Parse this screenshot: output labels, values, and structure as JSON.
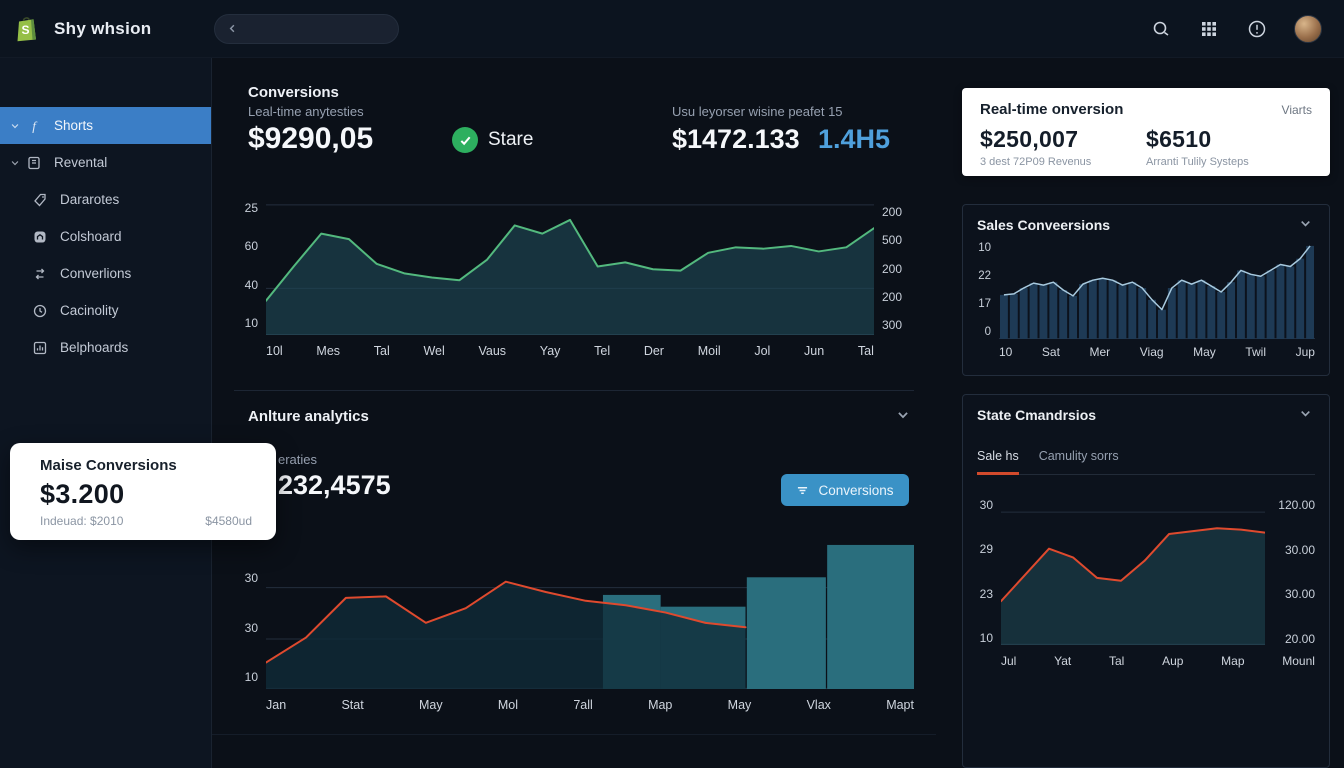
{
  "topbar": {
    "title": "Shy whsion",
    "icons": [
      "shopify-logo",
      "back-chevron-icon",
      "search-icon",
      "apps-grid-icon",
      "alert-icon",
      "avatar"
    ]
  },
  "sidebar": {
    "items": [
      {
        "label": "Shorts",
        "icon": "f-icon",
        "active": true,
        "chevron": true
      },
      {
        "label": "Revental",
        "icon": "book-icon",
        "active": false,
        "chevron": true
      },
      {
        "label": "Dararotes",
        "icon": "tag-icon",
        "active": false,
        "chevron": false
      },
      {
        "label": "Colshoard",
        "icon": "home-icon",
        "active": false,
        "chevron": false
      },
      {
        "label": "Converlions",
        "icon": "swap-icon",
        "active": false,
        "chevron": false
      },
      {
        "label": "Cacinolity",
        "icon": "clock-icon",
        "active": false,
        "chevron": false
      },
      {
        "label": "Belphoards",
        "icon": "chart-icon",
        "active": false,
        "chevron": false
      }
    ]
  },
  "conversions": {
    "title": "Conversions",
    "subtitle": "Leal-time anytesties",
    "value": "$9290,05",
    "badge_label": "Stare",
    "right_label": "Usu leyorser wisine peafet 15",
    "right_value": "$1472.133",
    "right_value_alt": "1.4H5"
  },
  "analytics": {
    "title": "Anlture analytics",
    "fragment_label": "eraties",
    "value": "232,4575",
    "button_label": "Conversions"
  },
  "overlay_card": {
    "title": "Maise Conversions",
    "value": "$3.200",
    "note_left": "Indeuad: $2010",
    "note_right": "$4580ud"
  },
  "realtime_card": {
    "title": "Real-time onversion",
    "tag": "Viarts",
    "stats": [
      {
        "value": "$250,007",
        "label": "3 dest 72P09 Revenus"
      },
      {
        "value": "$6510",
        "label": "Arranti Tulily Systeps"
      }
    ]
  },
  "sales_panel": {
    "title": "Sales Conveersions"
  },
  "state_panel": {
    "title": "State Cmandrsios",
    "tabs": [
      {
        "label": "Sale hs",
        "active": true
      },
      {
        "label": "Camulity sorrs",
        "active": false
      }
    ]
  },
  "colors": {
    "accent_blue": "#3b7ec6",
    "button_blue": "#3a92c6",
    "green_line": "#53b97e",
    "red_line": "#df4a2e",
    "teal_fill": "rgba(31,72,85,0.62)",
    "teal_bar": "#2a6e7d",
    "navy_bar": "#1e3a55",
    "light_line": "#a7c9de",
    "badge_green": "#2daf5f",
    "tab_underline": "#d24a2c",
    "blue_text": "#4fa0dc"
  },
  "chart_data": [
    {
      "id": "main-area",
      "type": "area",
      "title": "Conversions Leal-time anytesties",
      "x_labels": [
        "10l",
        "Mes",
        "Tal",
        "Wel",
        "Vaus",
        "Yay",
        "Tel",
        "Der",
        "Moil",
        "Jol",
        "Jun",
        "Tal"
      ],
      "y_left_ticks": [
        "25",
        "60",
        "40",
        "10"
      ],
      "y_right_ticks": [
        "200",
        "500",
        "200",
        "200",
        "300"
      ],
      "values": [
        25,
        50,
        74,
        70,
        52,
        45,
        42,
        40,
        55,
        80,
        74,
        84,
        50,
        53,
        48,
        47,
        60,
        64,
        63,
        65,
        61,
        64,
        78
      ],
      "ylim": [
        0,
        100
      ],
      "gridlines": [
        95,
        34
      ],
      "line_color": "#53b97e",
      "fill_color": "rgba(31,72,85,0.62)",
      "legend": "none"
    },
    {
      "id": "analytics-mixed",
      "type": "area+bar",
      "title": "Anlture analytics 232,4575",
      "x_labels": [
        "Jan",
        "Stat",
        "May",
        "Mol",
        "7all",
        "Map",
        "May",
        "Vlax",
        "Mapt"
      ],
      "y_left_ticks": [
        "30",
        "30",
        "10"
      ],
      "line_values": [
        18,
        35,
        62,
        63,
        45,
        55,
        73,
        66,
        60,
        57,
        52,
        45,
        42
      ],
      "line_span_pct": [
        0,
        74
      ],
      "bars": [
        {
          "x": 52,
          "w": 8.9,
          "v": 64
        },
        {
          "x": 60.9,
          "w": 13.1,
          "v": 56
        },
        {
          "x": 74.2,
          "w": 12.2,
          "v": 76
        },
        {
          "x": 86.6,
          "w": 13.4,
          "v": 98
        }
      ],
      "ylim": [
        0,
        100
      ],
      "gridlines": [
        69,
        34
      ],
      "line_color": "#df4a2e",
      "fill_color": "rgba(16,44,56,0.78)",
      "bar_color": "#2a6e7d",
      "legend": "none"
    },
    {
      "id": "sales-bars",
      "type": "bar",
      "title": "Sales Conveersions",
      "x_labels": [
        "10",
        "Sat",
        "Mer",
        "Viag",
        "May",
        "Twil",
        "Jup"
      ],
      "y_left_ticks": [
        "10",
        "22",
        "17",
        "0"
      ],
      "values": [
        45,
        46,
        52,
        57,
        55,
        58,
        50,
        44,
        56,
        60,
        62,
        60,
        55,
        58,
        52,
        40,
        30,
        52,
        60,
        56,
        60,
        54,
        48,
        58,
        70,
        66,
        64,
        70,
        76,
        74,
        82,
        95
      ],
      "ylim": [
        0,
        100
      ],
      "bar_color": "#1e3a55",
      "line_color": "#a7c9de",
      "legend": "none"
    },
    {
      "id": "state-area",
      "type": "area",
      "title": "State Cmandrsios - Sale hs",
      "x_labels": [
        "Jul",
        "Yat",
        "Tal",
        "Aup",
        "Map",
        "Mounl"
      ],
      "y_left_ticks": [
        "30",
        "29",
        "23",
        "10"
      ],
      "y_right_ticks": [
        "120.00",
        "30.00",
        "30.00",
        "20.00"
      ],
      "values": [
        30,
        48,
        66,
        60,
        46,
        44,
        58,
        76,
        78,
        80,
        79,
        77
      ],
      "ylim": [
        0,
        100
      ],
      "gridlines": [
        91
      ],
      "line_color": "#df4a2e",
      "fill_color": "rgba(31,72,85,0.55)",
      "legend": "none"
    }
  ]
}
